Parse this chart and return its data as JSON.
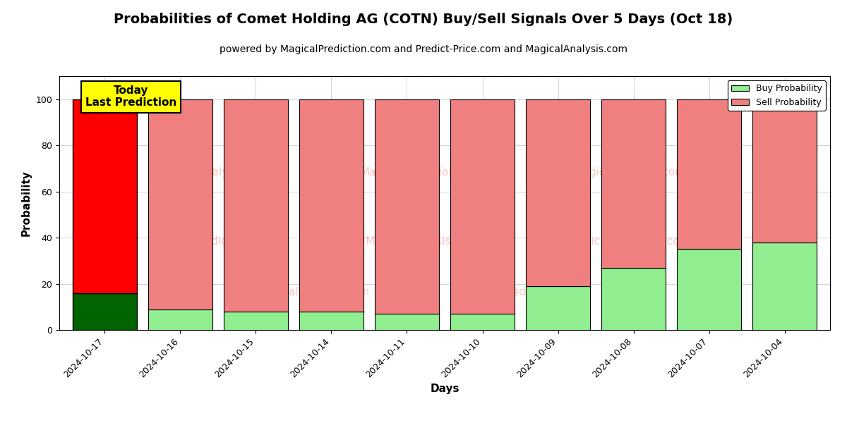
{
  "title": "Probabilities of Comet Holding AG (COTN) Buy/Sell Signals Over 5 Days (Oct 18)",
  "subtitle": "powered by MagicalPrediction.com and Predict-Price.com and MagicalAnalysis.com",
  "xlabel": "Days",
  "ylabel": "Probability",
  "categories": [
    "2024-10-17",
    "2024-10-16",
    "2024-10-15",
    "2024-10-14",
    "2024-10-11",
    "2024-10-10",
    "2024-10-09",
    "2024-10-08",
    "2024-10-07",
    "2024-10-04"
  ],
  "buy_values": [
    16,
    9,
    8,
    8,
    7,
    7,
    19,
    27,
    35,
    38
  ],
  "sell_values": [
    84,
    91,
    92,
    92,
    93,
    93,
    81,
    73,
    65,
    62
  ],
  "buy_color_today": "#006400",
  "sell_color_today": "#FF0000",
  "buy_color_past": "#90EE90",
  "sell_color_past": "#F08080",
  "today_annotation_text": "Today\nLast Prediction",
  "today_annotation_bg": "#FFFF00",
  "legend_buy_label": "Buy Probability",
  "legend_sell_label": "Sell Probability",
  "ylim": [
    0,
    110
  ],
  "dashed_line_y": 110,
  "watermark_texts": [
    "MagicalAnalysis.com",
    "MagicalPrediction.com"
  ],
  "bar_width": 0.85,
  "figsize": [
    12,
    6
  ],
  "dpi": 100,
  "title_fontsize": 14,
  "subtitle_fontsize": 10,
  "axis_label_fontsize": 11,
  "tick_fontsize": 9
}
